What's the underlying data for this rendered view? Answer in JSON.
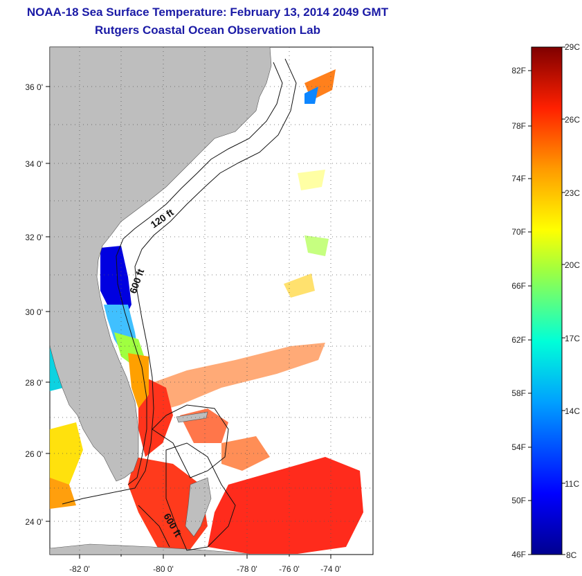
{
  "title": "NOAA-18 Sea Surface Temperature:  February 13, 2014 2049 GMT",
  "subtitle": "Rutgers Coastal Ocean Observation Lab",
  "map": {
    "lon_labels": [
      "-82 0'",
      "-80 0'",
      "-78 0'",
      "-76 0'",
      "-74 0'"
    ],
    "lat_labels": [
      "36 0'",
      "34 0'",
      "32 0'",
      "30 0'",
      "28 0'",
      "26 0'",
      "24 0'"
    ],
    "contour_labels": [
      "120 ft",
      "600 ft",
      "600 ft"
    ],
    "land_color": "#bebebe"
  },
  "colorbar": {
    "fahrenheit": [
      "82F",
      "78F",
      "74F",
      "70F",
      "66F",
      "62F",
      "58F",
      "54F",
      "50F",
      "46F"
    ],
    "celsius": [
      "29C",
      "26C",
      "23C",
      "20C",
      "17C",
      "14C",
      "11C",
      "8C"
    ]
  }
}
